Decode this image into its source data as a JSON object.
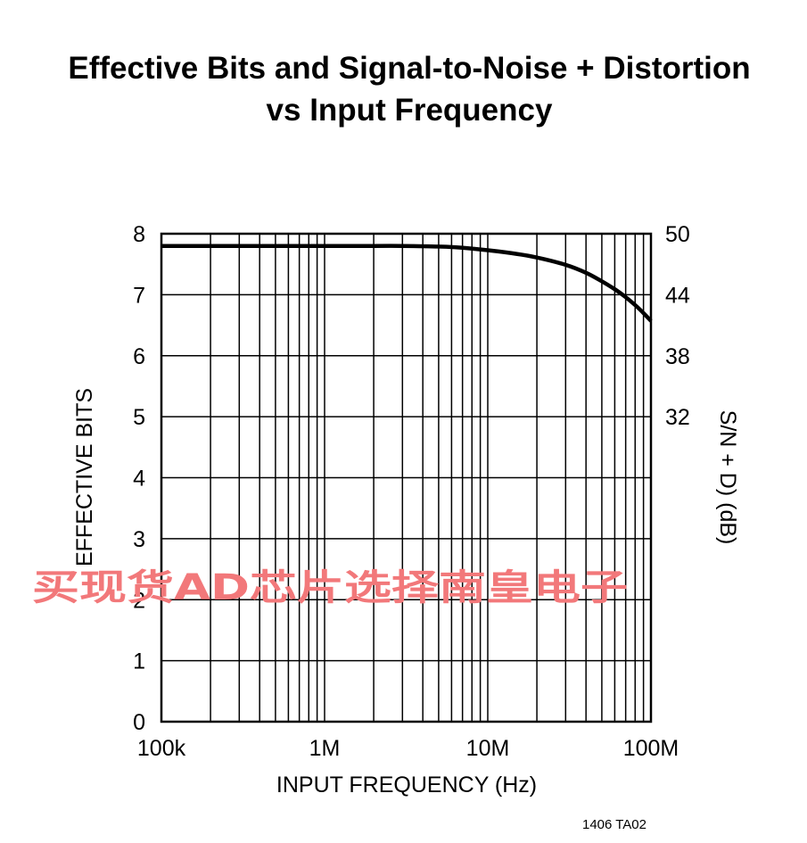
{
  "title_line1": "Effective Bits and Signal-to-Noise + Distortion",
  "title_line2": "vs Input Frequency",
  "figure_code": "1406 TA02",
  "watermark": "买现货AD芯片选择南皇电子",
  "colors": {
    "curve": "#000000",
    "grid": "#000000",
    "watermark": "#f2787a"
  },
  "chart_data": {
    "type": "line",
    "xlabel": "INPUT FREQUENCY (Hz)",
    "ylabel": "EFFECTIVE BITS",
    "y2label": "S/N + D) (dB)",
    "xscale": "log",
    "xlim": [
      100000,
      100000000
    ],
    "ylim": [
      0,
      8
    ],
    "grid": true,
    "xticks": [
      {
        "value": 100000,
        "label": "100k"
      },
      {
        "value": 1000000,
        "label": "1M"
      },
      {
        "value": 10000000,
        "label": "10M"
      },
      {
        "value": 100000000,
        "label": "100M"
      }
    ],
    "yticks": [
      {
        "value": 0,
        "label": "0"
      },
      {
        "value": 1,
        "label": "1"
      },
      {
        "value": 2,
        "label": "2"
      },
      {
        "value": 3,
        "label": "3"
      },
      {
        "value": 4,
        "label": "4"
      },
      {
        "value": 5,
        "label": "5"
      },
      {
        "value": 6,
        "label": "6"
      },
      {
        "value": 7,
        "label": "7"
      },
      {
        "value": 8,
        "label": "8"
      }
    ],
    "y2ticks": [
      {
        "value": 5,
        "label": "32"
      },
      {
        "value": 6,
        "label": "38"
      },
      {
        "value": 7,
        "label": "44"
      },
      {
        "value": 8,
        "label": "50"
      }
    ],
    "series": [
      {
        "x": [
          100000,
          200000,
          500000,
          1000000,
          2000000,
          3000000,
          5000000,
          7000000,
          10000000,
          15000000,
          20000000,
          30000000,
          40000000,
          50000000,
          60000000,
          70000000,
          80000000,
          90000000,
          100000000
        ],
        "y": [
          7.8,
          7.8,
          7.8,
          7.8,
          7.8,
          7.8,
          7.79,
          7.77,
          7.73,
          7.67,
          7.61,
          7.49,
          7.36,
          7.22,
          7.09,
          6.96,
          6.83,
          6.7,
          6.57
        ]
      }
    ]
  }
}
